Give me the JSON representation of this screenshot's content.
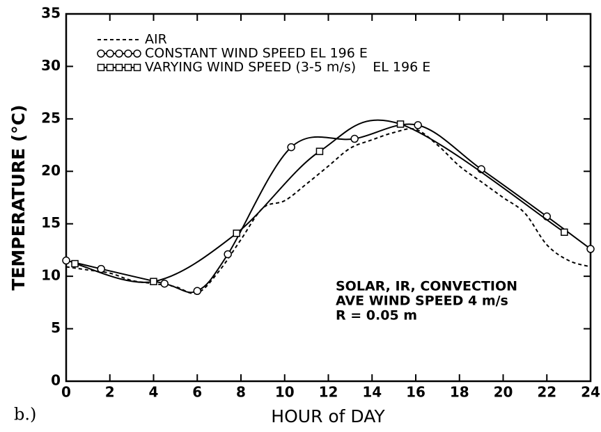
{
  "chart_data": {
    "type": "line",
    "panel_label": "b.)",
    "xlabel": "HOUR of DAY",
    "ylabel": "TEMPERATURE (°C)",
    "annotation": [
      "SOLAR, IR, CONVECTION",
      "AVE WIND SPEED 4 m/s",
      "R = 0.05 m"
    ],
    "xlim": [
      0,
      24
    ],
    "xticks": [
      0,
      2,
      4,
      6,
      8,
      10,
      12,
      14,
      16,
      18,
      20,
      22,
      24
    ],
    "ylim": [
      0,
      35
    ],
    "yticks": [
      0,
      5,
      10,
      15,
      20,
      25,
      30,
      35
    ],
    "legend": "top-left",
    "series": [
      {
        "name": "AIR",
        "color": "#000000",
        "style": "dashed",
        "marker": "none",
        "x": [
          0,
          1,
          2,
          3,
          4,
          5,
          6,
          7,
          8,
          9,
          10,
          11,
          12,
          13,
          14,
          15,
          16,
          17,
          18,
          19,
          20,
          21,
          22,
          23,
          24
        ],
        "values": [
          10.9,
          10.6,
          10.3,
          9.6,
          9.3,
          9.0,
          8.4,
          10.5,
          13.5,
          16.5,
          17.2,
          18.8,
          20.5,
          22.2,
          23.0,
          23.7,
          24.0,
          22.5,
          20.5,
          19.0,
          17.5,
          16.0,
          13.0,
          11.5,
          10.9
        ]
      },
      {
        "name": "CONSTANT WIND SPEED EL 196 E",
        "color": "#000000",
        "style": "solid",
        "marker": "circle",
        "x": [
          0,
          1.6,
          4.5,
          6,
          7.4,
          10.3,
          13.2,
          16.1,
          19,
          22,
          24
        ],
        "values": [
          11.5,
          10.7,
          9.3,
          8.6,
          12.1,
          22.3,
          23.1,
          24.4,
          20.2,
          15.7,
          12.6
        ]
      },
      {
        "name": "VARYING WIND SPEED (3-5 m/s)    EL 196 E",
        "color": "#000000",
        "style": "solid",
        "marker": "square",
        "x": [
          0.4,
          4.0,
          7.8,
          11.6,
          15.3,
          22.8
        ],
        "values": [
          11.2,
          9.5,
          14.1,
          21.9,
          24.5,
          14.2
        ]
      }
    ]
  }
}
